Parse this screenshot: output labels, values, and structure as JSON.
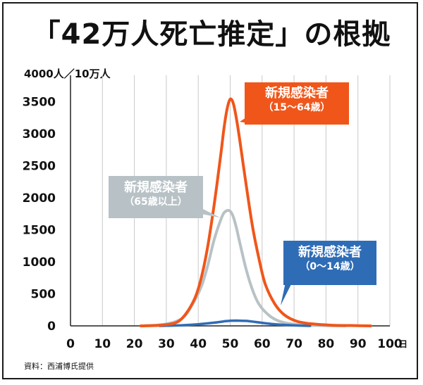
{
  "title": "「42万人死亡推定」の根拠",
  "source": "資料：西浦博氏提供",
  "colors": {
    "orange": "#f0561a",
    "gray": "#b8c2c6",
    "blue": "#2f6cb6",
    "grid": "#c9c9c9"
  },
  "chart_data": {
    "type": "line",
    "y_unit_label": "4000人／10万人",
    "x_unit_label": "日",
    "xlim": [
      0,
      100
    ],
    "ylim": [
      0,
      4000
    ],
    "xticks": [
      "0",
      "10",
      "20",
      "30",
      "40",
      "50",
      "60",
      "70",
      "80",
      "90",
      "100"
    ],
    "yticks": [
      "0",
      "500",
      "1000",
      "1500",
      "2000",
      "2500",
      "3000",
      "3500"
    ],
    "grid": "vertical",
    "series": [
      {
        "name": "新規感染者（15〜64歳）",
        "label_line1": "新規感染者",
        "label_line2": "（15〜64歳）",
        "color": "#f0561a",
        "x": [
          22,
          28,
          33,
          36,
          39,
          41,
          43,
          45,
          47,
          48,
          49,
          50,
          51,
          52,
          53,
          55,
          57,
          59,
          61,
          64,
          67,
          71,
          76,
          82,
          88,
          94
        ],
        "y": [
          0,
          10,
          50,
          180,
          440,
          760,
          1250,
          1900,
          2650,
          3060,
          3380,
          3540,
          3470,
          3220,
          2900,
          2200,
          1550,
          1050,
          650,
          340,
          170,
          70,
          30,
          10,
          5,
          0
        ]
      },
      {
        "name": "新規感染者（65歳以上）",
        "label_line1": "新規感染者",
        "label_line2": "（65歳以上）",
        "color": "#b8c2c6",
        "x": [
          23,
          30,
          35,
          38,
          41,
          43,
          45,
          47,
          48,
          49,
          50,
          51,
          52,
          53,
          55,
          57,
          59,
          62,
          65,
          68,
          72,
          78,
          86
        ],
        "y": [
          0,
          30,
          120,
          320,
          620,
          950,
          1350,
          1650,
          1760,
          1800,
          1790,
          1700,
          1520,
          1300,
          880,
          560,
          340,
          170,
          80,
          40,
          15,
          5,
          0
        ]
      },
      {
        "name": "新規感染者（0〜14歳）",
        "label_line1": "新規感染者",
        "label_line2": "（0〜14歳）",
        "color": "#2f6cb6",
        "x": [
          28,
          35,
          40,
          45,
          48,
          50,
          52,
          55,
          58,
          62,
          66,
          70,
          75
        ],
        "y": [
          0,
          10,
          25,
          50,
          70,
          80,
          82,
          78,
          60,
          35,
          18,
          8,
          0
        ]
      }
    ]
  }
}
